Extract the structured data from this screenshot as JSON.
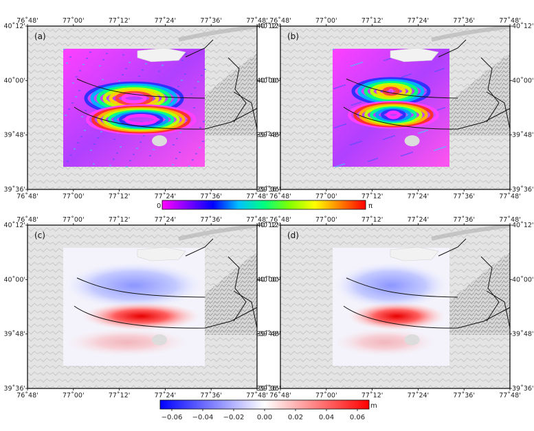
{
  "panels": [
    {
      "label": "(a)",
      "type": "wrapped-interferogram"
    },
    {
      "label": "(b)",
      "type": "wrapped-interferogram"
    },
    {
      "label": "(c)",
      "type": "unwrapped-displacement"
    },
    {
      "label": "(d)",
      "type": "unwrapped-displacement"
    }
  ],
  "lon_ticks": [
    "76˚48'",
    "77˚00'",
    "77˚12'",
    "77˚24'",
    "77˚36'",
    "77˚48'"
  ],
  "lat_ticks": [
    "40˚12'",
    "40˚00'",
    "39˚48'",
    "39˚36'"
  ],
  "phase_colorbar": {
    "min_label": "0",
    "max_label": "π",
    "colors": [
      "#ff00ff",
      "#8000ff",
      "#0000ff",
      "#00c0ff",
      "#00ff80",
      "#80ff00",
      "#ffff00",
      "#ff8000",
      "#ff0000"
    ]
  },
  "displacement_colorbar": {
    "tick_labels": [
      "−0.06",
      "−0.04",
      "−0.02",
      "0.00",
      "0.02",
      "0.04",
      "0.06"
    ],
    "unit": "m",
    "colors": [
      "#0000ff",
      "#ffffff",
      "#ff0000"
    ]
  }
}
